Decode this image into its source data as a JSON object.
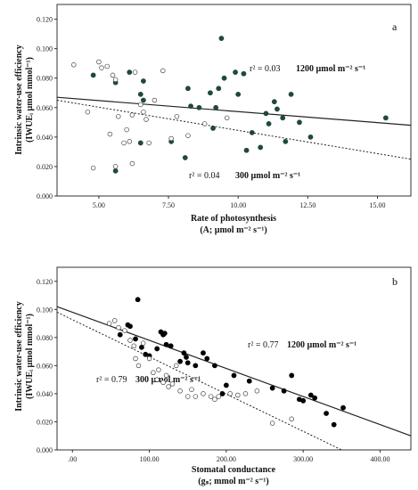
{
  "chart_data": [
    {
      "type": "scatter",
      "panel_label": "a",
      "xlabel": "Rate of photosynthesis",
      "xlabel_sub": "(A; µmol m⁻² s⁻¹)",
      "ylabel": "Intrinsic water-use efficiency",
      "ylabel_sub": "(IWUEᵢ µmol mmol⁻¹)",
      "xlim": [
        3.5,
        16.2
      ],
      "ylim": [
        0,
        0.13
      ],
      "xticks": [
        "5.00",
        "7.50",
        "10.00",
        "12.50",
        "15.00"
      ],
      "xtick_values": [
        5,
        7.5,
        10,
        12.5,
        15
      ],
      "yticks": [
        "0.000",
        "0.020",
        "0.040",
        "0.060",
        "0.080",
        "0.100",
        "0.120"
      ],
      "ytick_values": [
        0,
        0.02,
        0.04,
        0.06,
        0.08,
        0.1,
        0.12
      ],
      "color_filled": "#1f4a3a",
      "series": [
        {
          "name": "1200 µmol m⁻² s⁻¹",
          "marker": "filled",
          "r2_label": "r² = 0.03",
          "label": "1200 µmol m⁻² s⁻¹",
          "line": [
            [
              3.5,
              0.067
            ],
            [
              16.2,
              0.048
            ]
          ],
          "points": [
            [
              4.8,
              0.082
            ],
            [
              5.6,
              0.077
            ],
            [
              6.1,
              0.084
            ],
            [
              6.5,
              0.069
            ],
            [
              6.6,
              0.078
            ],
            [
              6.6,
              0.065
            ],
            [
              6.5,
              0.036
            ],
            [
              5.6,
              0.017
            ],
            [
              7.6,
              0.037
            ],
            [
              8.2,
              0.073
            ],
            [
              8.3,
              0.061
            ],
            [
              8.6,
              0.06
            ],
            [
              8.1,
              0.026
            ],
            [
              9.0,
              0.07
            ],
            [
              9.1,
              0.046
            ],
            [
              9.2,
              0.06
            ],
            [
              9.3,
              0.073
            ],
            [
              9.4,
              0.107
            ],
            [
              9.5,
              0.08
            ],
            [
              9.9,
              0.084
            ],
            [
              10.0,
              0.069
            ],
            [
              10.2,
              0.083
            ],
            [
              10.3,
              0.031
            ],
            [
              10.5,
              0.043
            ],
            [
              10.8,
              0.033
            ],
            [
              11.0,
              0.056
            ],
            [
              11.1,
              0.049
            ],
            [
              11.3,
              0.064
            ],
            [
              11.4,
              0.059
            ],
            [
              11.6,
              0.053
            ],
            [
              11.7,
              0.037
            ],
            [
              11.9,
              0.069
            ],
            [
              12.2,
              0.05
            ],
            [
              12.6,
              0.04
            ],
            [
              15.3,
              0.053
            ]
          ]
        },
        {
          "name": "300 µmol m⁻² s⁻¹",
          "marker": "open",
          "r2_label": "r² = 0.04",
          "label": "300 µmol m⁻² s⁻¹",
          "line": [
            [
              3.5,
              0.065
            ],
            [
              16.2,
              0.025
            ]
          ],
          "points": [
            [
              4.1,
              0.089
            ],
            [
              4.6,
              0.057
            ],
            [
              4.8,
              0.019
            ],
            [
              5.0,
              0.091
            ],
            [
              5.1,
              0.087
            ],
            [
              5.3,
              0.088
            ],
            [
              5.4,
              0.042
            ],
            [
              5.5,
              0.082
            ],
            [
              5.6,
              0.079
            ],
            [
              5.6,
              0.02
            ],
            [
              5.7,
              0.054
            ],
            [
              5.9,
              0.036
            ],
            [
              6.0,
              0.045
            ],
            [
              6.1,
              0.037
            ],
            [
              6.2,
              0.055
            ],
            [
              6.2,
              0.022
            ],
            [
              6.3,
              0.084
            ],
            [
              6.5,
              0.062
            ],
            [
              6.6,
              0.057
            ],
            [
              6.7,
              0.052
            ],
            [
              6.8,
              0.036
            ],
            [
              7.0,
              0.065
            ],
            [
              7.3,
              0.085
            ],
            [
              7.6,
              0.039
            ],
            [
              7.8,
              0.054
            ],
            [
              8.2,
              0.041
            ],
            [
              8.8,
              0.049
            ],
            [
              9.6,
              0.053
            ]
          ]
        }
      ]
    },
    {
      "type": "scatter",
      "panel_label": "b",
      "xlabel": "Stomatal conductance",
      "xlabel_sub": "(gₛ; mmol m⁻² s⁻¹)",
      "ylabel": "Intrinsic water-use efficiency",
      "ylabel_sub": "(IWUEᵢ µmol mmol⁻¹)",
      "xlim": [
        -20,
        440
      ],
      "ylim": [
        0,
        0.13
      ],
      "xticks": [
        ".00",
        "100.00",
        "200.00",
        "300.00",
        "400.00"
      ],
      "xtick_values": [
        0,
        100,
        200,
        300,
        400
      ],
      "yticks": [
        "0.000",
        "0.020",
        "0.040",
        "0.060",
        "0.080",
        "0.100",
        "0.120"
      ],
      "ytick_values": [
        0,
        0.02,
        0.04,
        0.06,
        0.08,
        0.1,
        0.12
      ],
      "color_filled": "#000000",
      "series": [
        {
          "name": "1200 µmol m⁻² s⁻¹",
          "marker": "filled",
          "r2_label": "r² = 0.77",
          "label": "1200 µmol m⁻² s⁻¹",
          "line": [
            [
              -20,
              0.102
            ],
            [
              440,
              0.01
            ]
          ],
          "points": [
            [
              62,
              0.082
            ],
            [
              72,
              0.089
            ],
            [
              75,
              0.088
            ],
            [
              82,
              0.079
            ],
            [
              85,
              0.107
            ],
            [
              90,
              0.073
            ],
            [
              95,
              0.068
            ],
            [
              100,
              0.067
            ],
            [
              110,
              0.072
            ],
            [
              115,
              0.084
            ],
            [
              118,
              0.082
            ],
            [
              120,
              0.083
            ],
            [
              122,
              0.075
            ],
            [
              128,
              0.074
            ],
            [
              140,
              0.063
            ],
            [
              145,
              0.069
            ],
            [
              148,
              0.066
            ],
            [
              150,
              0.062
            ],
            [
              160,
              0.06
            ],
            [
              170,
              0.069
            ],
            [
              175,
              0.065
            ],
            [
              185,
              0.06
            ],
            [
              195,
              0.04
            ],
            [
              200,
              0.046
            ],
            [
              210,
              0.053
            ],
            [
              230,
              0.049
            ],
            [
              260,
              0.044
            ],
            [
              275,
              0.042
            ],
            [
              285,
              0.053
            ],
            [
              295,
              0.036
            ],
            [
              300,
              0.035
            ],
            [
              310,
              0.039
            ],
            [
              315,
              0.037
            ],
            [
              330,
              0.026
            ],
            [
              340,
              0.018
            ],
            [
              352,
              0.03
            ]
          ]
        },
        {
          "name": "300 µmol m⁻² s⁻¹",
          "marker": "open",
          "r2_label": "r² = 0.79",
          "label": "300 µmol m⁻² s⁻¹",
          "line": [
            [
              -20,
              0.098
            ],
            [
              350,
              0
            ]
          ],
          "points": [
            [
              48,
              0.09
            ],
            [
              55,
              0.092
            ],
            [
              60,
              0.087
            ],
            [
              68,
              0.085
            ],
            [
              75,
              0.078
            ],
            [
              80,
              0.074
            ],
            [
              82,
              0.065
            ],
            [
              86,
              0.06
            ],
            [
              92,
              0.076
            ],
            [
              100,
              0.065
            ],
            [
              105,
              0.055
            ],
            [
              110,
              0.05
            ],
            [
              112,
              0.057
            ],
            [
              118,
              0.048
            ],
            [
              122,
              0.053
            ],
            [
              125,
              0.045
            ],
            [
              130,
              0.047
            ],
            [
              135,
              0.06
            ],
            [
              140,
              0.042
            ],
            [
              150,
              0.038
            ],
            [
              155,
              0.043
            ],
            [
              160,
              0.038
            ],
            [
              170,
              0.04
            ],
            [
              180,
              0.038
            ],
            [
              185,
              0.036
            ],
            [
              190,
              0.038
            ],
            [
              205,
              0.04
            ],
            [
              215,
              0.039
            ],
            [
              225,
              0.04
            ],
            [
              240,
              0.042
            ],
            [
              260,
              0.019
            ],
            [
              285,
              0.022
            ]
          ]
        }
      ]
    }
  ]
}
